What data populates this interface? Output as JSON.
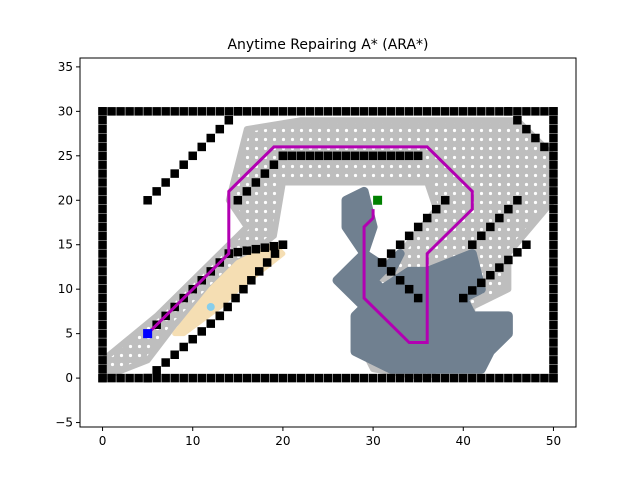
{
  "chart_data": {
    "type": "scatter",
    "title": "Anytime Repairing A* (ARA*)",
    "xlabel": "",
    "ylabel": "",
    "xlim": [
      -2.5,
      52.5
    ],
    "ylim": [
      -5.5,
      36
    ],
    "xticks": [
      0,
      10,
      20,
      30,
      40,
      50
    ],
    "yticks": [
      -5,
      0,
      5,
      10,
      15,
      20,
      25,
      30,
      35
    ],
    "grid": false,
    "colors": {
      "obstacle": "#000000",
      "closed": "#bebebe",
      "open": "#ffffff",
      "inconsistent": "#f5deb3",
      "second_search": "#708090",
      "path": "#b200b2",
      "start": "#0000ff",
      "goal": "#008000",
      "current": "#87ceeb"
    },
    "start": [
      5,
      5
    ],
    "goal": [
      30.5,
      20
    ],
    "current_node": [
      12,
      8
    ],
    "path": [
      [
        5,
        5
      ],
      [
        14,
        14
      ],
      [
        14,
        21
      ],
      [
        19,
        26
      ],
      [
        36,
        26
      ],
      [
        41,
        21
      ],
      [
        41,
        19
      ],
      [
        36,
        14
      ],
      [
        36,
        4
      ],
      [
        34,
        4
      ],
      [
        29,
        9
      ],
      [
        29,
        17
      ],
      [
        30,
        18
      ],
      [
        30,
        19
      ]
    ],
    "boundary_rectangle": [
      [
        0,
        0
      ],
      [
        50,
        0
      ],
      [
        50,
        30
      ],
      [
        0,
        30
      ]
    ],
    "inner_segments": [
      [
        [
          20,
          25
        ],
        [
          35,
          25
        ]
      ]
    ],
    "diagonal_walls": [
      [
        [
          5,
          5
        ],
        [
          14,
          14
        ]
      ],
      [
        [
          14,
          14
        ],
        [
          20,
          15
        ]
      ],
      [
        [
          13,
          7
        ],
        [
          20,
          15
        ]
      ],
      [
        [
          5,
          0
        ],
        [
          13,
          7
        ]
      ],
      [
        [
          5,
          20
        ],
        [
          15,
          30
        ]
      ],
      [
        [
          15,
          20
        ],
        [
          20,
          25
        ]
      ],
      [
        [
          38,
          20
        ],
        [
          31,
          13
        ]
      ],
      [
        [
          31,
          13
        ],
        [
          35,
          9
        ]
      ],
      [
        [
          41,
          15
        ],
        [
          46,
          20
        ]
      ],
      [
        [
          40,
          9
        ],
        [
          47,
          15
        ]
      ],
      [
        [
          45,
          30
        ],
        [
          49,
          26
        ]
      ]
    ],
    "closed_polygons": [
      [
        [
          0,
          2
        ],
        [
          6,
          7
        ],
        [
          15,
          16
        ],
        [
          16,
          17
        ],
        [
          14,
          20
        ],
        [
          16,
          28
        ],
        [
          22,
          29
        ],
        [
          46,
          29
        ],
        [
          50,
          25
        ],
        [
          50,
          20
        ],
        [
          45,
          14
        ],
        [
          45,
          10
        ],
        [
          41,
          8
        ],
        [
          41,
          5
        ],
        [
          36,
          0
        ],
        [
          30,
          1
        ],
        [
          29,
          3
        ],
        [
          30,
          8
        ],
        [
          30,
          12
        ],
        [
          33,
          14
        ],
        [
          37,
          19
        ],
        [
          36,
          22
        ],
        [
          20,
          22
        ],
        [
          19,
          16
        ],
        [
          14,
          12
        ],
        [
          8,
          6
        ],
        [
          5,
          2
        ],
        [
          0,
          0
        ]
      ]
    ],
    "inconsistent_polygons": [
      [
        [
          8,
          5
        ],
        [
          12,
          10
        ],
        [
          15,
          13
        ],
        [
          19,
          15
        ],
        [
          20,
          14
        ],
        [
          15,
          10
        ],
        [
          13,
          8
        ],
        [
          9,
          5
        ]
      ]
    ],
    "second_search_polygons": [
      [
        [
          27,
          20
        ],
        [
          29,
          21
        ],
        [
          30,
          17
        ],
        [
          29,
          14
        ],
        [
          32,
          12
        ],
        [
          33,
          14
        ],
        [
          30,
          11
        ],
        [
          31,
          10
        ],
        [
          34,
          12
        ],
        [
          36,
          12
        ],
        [
          41,
          14
        ],
        [
          42,
          10
        ],
        [
          40,
          9
        ],
        [
          41,
          7
        ],
        [
          45,
          7
        ],
        [
          45,
          5
        ],
        [
          43,
          3
        ],
        [
          42,
          1
        ],
        [
          37,
          1
        ],
        [
          32,
          1
        ],
        [
          30,
          2
        ],
        [
          28,
          3
        ],
        [
          28,
          7
        ],
        [
          29,
          8
        ],
        [
          26,
          11
        ],
        [
          28,
          13
        ],
        [
          29,
          14
        ],
        [
          27,
          17
        ]
      ]
    ]
  }
}
